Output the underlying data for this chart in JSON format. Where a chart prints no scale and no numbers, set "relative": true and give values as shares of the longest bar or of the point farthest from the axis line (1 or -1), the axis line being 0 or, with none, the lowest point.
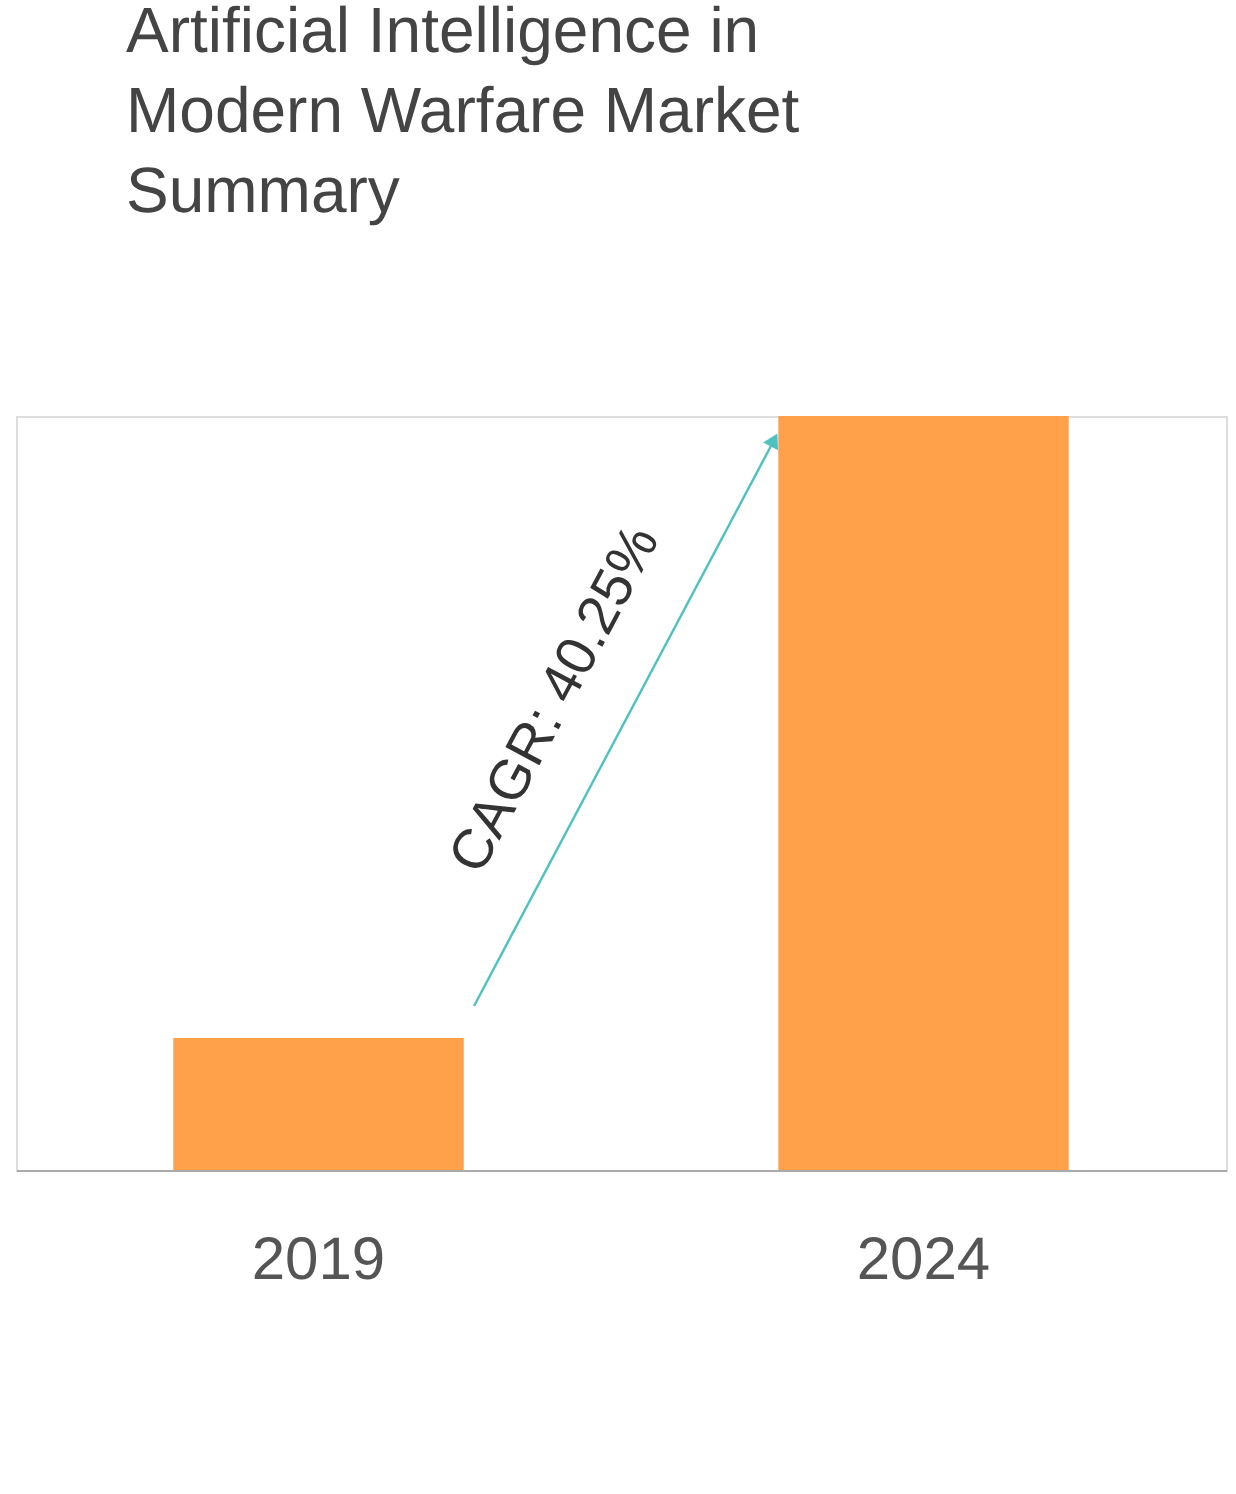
{
  "chart_data": {
    "type": "bar",
    "title": "Artificial Intelligence in Modern Warfare Market Summary",
    "categories": [
      "2019",
      "2024"
    ],
    "values": [
      0.175,
      1
    ],
    "color": "#ffa04a",
    "relative": true,
    "annotations": [
      "CAGR: 40.25%"
    ]
  }
}
